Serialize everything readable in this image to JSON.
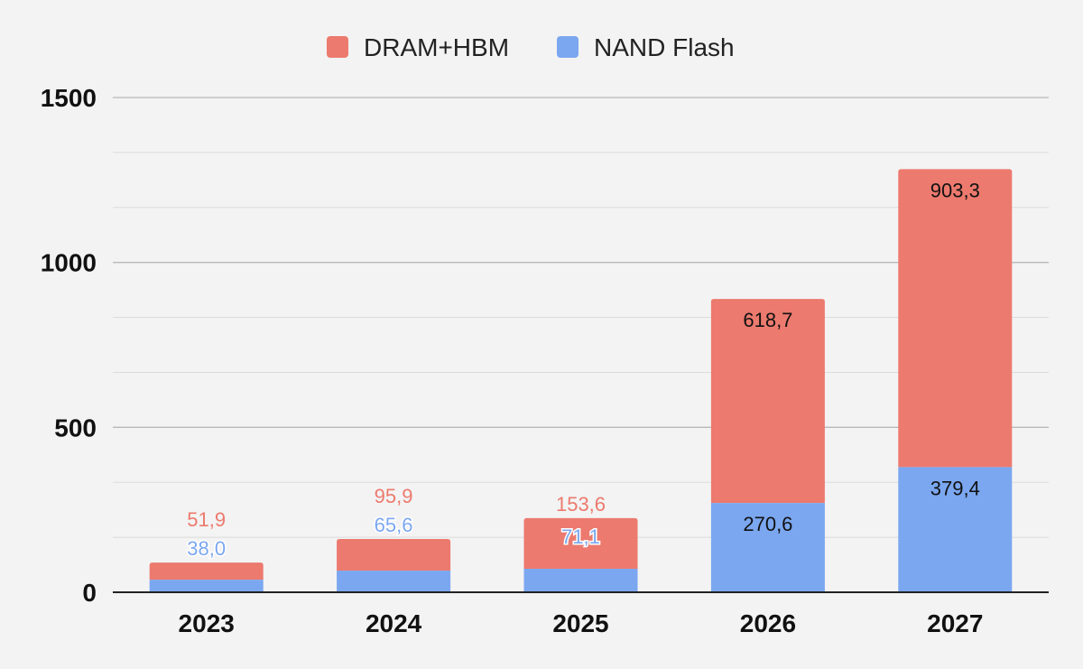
{
  "chart_data": {
    "type": "bar",
    "stacked": true,
    "categories": [
      "2023",
      "2024",
      "2025",
      "2026",
      "2027"
    ],
    "series": [
      {
        "name": "NAND Flash",
        "color": "#7ba7f0",
        "values": [
          38.0,
          65.6,
          71.1,
          270.6,
          379.4
        ],
        "labels": [
          "38,0",
          "65,6",
          "71,1",
          "270,6",
          "379,4"
        ]
      },
      {
        "name": "DRAM+HBM",
        "color": "#ec7a6e",
        "values": [
          51.9,
          95.9,
          153.6,
          618.7,
          903.3
        ],
        "labels": [
          "51,9",
          "95,9",
          "153,6",
          "618,7",
          "903,3"
        ]
      }
    ],
    "legend_order": [
      "DRAM+HBM",
      "NAND Flash"
    ],
    "legend_position": "top-center",
    "yticks": [
      "0",
      "500",
      "1000",
      "1500"
    ],
    "ylim": [
      0,
      1500
    ],
    "grid": true,
    "title": "",
    "xlabel": "",
    "ylabel": ""
  }
}
